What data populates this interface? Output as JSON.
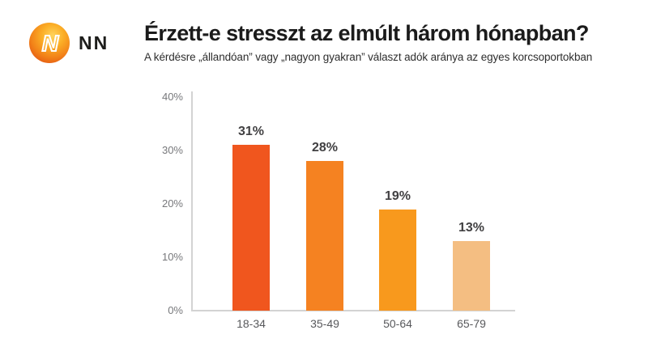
{
  "brand": {
    "wordmark": "NN",
    "logo_letter": "N",
    "logo_gradient": [
      "#FFD45C",
      "#FBAE26",
      "#F28118",
      "#E25212"
    ]
  },
  "header": {
    "title": "Érzett-e stresszt az elmúlt három hónapban?",
    "subtitle": "A kérdésre „állandóan” vagy „nagyon gyakran” választ adók aránya az egyes korcsoportokban"
  },
  "chart_data": {
    "type": "bar",
    "title": "Érzett-e stresszt az elmúlt három hónapban?",
    "subtitle": "A kérdésre „állandóan” vagy „nagyon gyakran” választ adók aránya az egyes korcsoportokban",
    "categories": [
      "18-34",
      "35-49",
      "50-64",
      "65-79"
    ],
    "values": [
      31,
      28,
      19,
      13
    ],
    "value_labels": [
      "31%",
      "28%",
      "19%",
      "13%"
    ],
    "bar_colors": [
      "#F0561E",
      "#F58221",
      "#F8991D",
      "#F4BE82"
    ],
    "xlabel": "",
    "ylabel": "",
    "ylim": [
      0,
      40
    ],
    "yticks": [
      0,
      10,
      20,
      30,
      40
    ],
    "ytick_labels": [
      "0%",
      "10%",
      "20%",
      "30%",
      "40%"
    ],
    "grid": false,
    "legend": false,
    "colors": {
      "axis": "#D3D3D3",
      "tick_label": "#77787B",
      "category_label": "#58595C",
      "value_label": "#414042"
    }
  }
}
